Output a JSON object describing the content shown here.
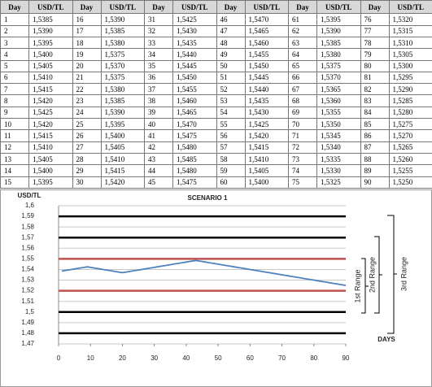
{
  "table": {
    "header": [
      "Day",
      "USD/TL",
      "Day",
      "USD/TL",
      "Day",
      "USD/TL",
      "Day",
      "USD/TL",
      "Day",
      "USD/TL",
      "Day",
      "USD/TL"
    ],
    "rows": [
      [
        "1",
        "1,5385",
        "16",
        "1,5390",
        "31",
        "1,5425",
        "46",
        "1,5470",
        "61",
        "1,5395",
        "76",
        "1,5320"
      ],
      [
        "2",
        "1,5390",
        "17",
        "1,5385",
        "32",
        "1,5430",
        "47",
        "1,5465",
        "62",
        "1,5390",
        "77",
        "1,5315"
      ],
      [
        "3",
        "1,5395",
        "18",
        "1,5380",
        "33",
        "1,5435",
        "48",
        "1,5460",
        "63",
        "1,5385",
        "78",
        "1,5310"
      ],
      [
        "4",
        "1,5400",
        "19",
        "1,5375",
        "34",
        "1,5440",
        "49",
        "1,5455",
        "64",
        "1,5380",
        "79",
        "1,5305"
      ],
      [
        "5",
        "1,5405",
        "20",
        "1,5370",
        "35",
        "1,5445",
        "50",
        "1,5450",
        "65",
        "1,5375",
        "80",
        "1,5300"
      ],
      [
        "6",
        "1,5410",
        "21",
        "1,5375",
        "36",
        "1,5450",
        "51",
        "1,5445",
        "66",
        "1,5370",
        "81",
        "1,5295"
      ],
      [
        "7",
        "1,5415",
        "22",
        "1,5380",
        "37",
        "1,5455",
        "52",
        "1,5440",
        "67",
        "1,5365",
        "82",
        "1,5290"
      ],
      [
        "8",
        "1,5420",
        "23",
        "1,5385",
        "38",
        "1,5460",
        "53",
        "1,5435",
        "68",
        "1,5360",
        "83",
        "1,5285"
      ],
      [
        "9",
        "1,5425",
        "24",
        "1,5390",
        "39",
        "1,5465",
        "54",
        "1,5430",
        "69",
        "1,5355",
        "84",
        "1,5280"
      ],
      [
        "10",
        "1,5420",
        "25",
        "1,5395",
        "40",
        "1,5470",
        "55",
        "1,5425",
        "70",
        "1,5350",
        "85",
        "1,5275"
      ],
      [
        "11",
        "1,5415",
        "26",
        "1,5400",
        "41",
        "1,5475",
        "56",
        "1,5420",
        "71",
        "1,5345",
        "86",
        "1,5270"
      ],
      [
        "12",
        "1,5410",
        "27",
        "1,5405",
        "42",
        "1,5480",
        "57",
        "1,5415",
        "72",
        "1,5340",
        "87",
        "1,5265"
      ],
      [
        "13",
        "1,5405",
        "28",
        "1,5410",
        "43",
        "1,5485",
        "58",
        "1,5410",
        "73",
        "1,5335",
        "88",
        "1,5260"
      ],
      [
        "14",
        "1,5400",
        "29",
        "1,5415",
        "44",
        "1,5480",
        "59",
        "1,5405",
        "74",
        "1,5330",
        "89",
        "1,5255"
      ],
      [
        "15",
        "1,5395",
        "30",
        "1,5420",
        "45",
        "1,5475",
        "60",
        "1,5400",
        "75",
        "1,5325",
        "90",
        "1,5250"
      ]
    ]
  },
  "chart_data": {
    "type": "line",
    "title": "SCENARIO 1",
    "y_label": "USD/TL",
    "x_label": "DAYS",
    "color": "#4f81bd",
    "x": [
      1,
      2,
      3,
      4,
      5,
      6,
      7,
      8,
      9,
      10,
      11,
      12,
      13,
      14,
      15,
      16,
      17,
      18,
      19,
      20,
      21,
      22,
      23,
      24,
      25,
      26,
      27,
      28,
      29,
      30,
      31,
      32,
      33,
      34,
      35,
      36,
      37,
      38,
      39,
      40,
      41,
      42,
      43,
      44,
      45,
      46,
      47,
      48,
      49,
      50,
      51,
      52,
      53,
      54,
      55,
      56,
      57,
      58,
      59,
      60,
      61,
      62,
      63,
      64,
      65,
      66,
      67,
      68,
      69,
      70,
      71,
      72,
      73,
      74,
      75,
      76,
      77,
      78,
      79,
      80,
      81,
      82,
      83,
      84,
      85,
      86,
      87,
      88,
      89,
      90
    ],
    "values": [
      1.5385,
      1.539,
      1.5395,
      1.54,
      1.5405,
      1.541,
      1.5415,
      1.542,
      1.5425,
      1.542,
      1.5415,
      1.541,
      1.5405,
      1.54,
      1.5395,
      1.539,
      1.5385,
      1.538,
      1.5375,
      1.537,
      1.5375,
      1.538,
      1.5385,
      1.539,
      1.5395,
      1.54,
      1.5405,
      1.541,
      1.5415,
      1.542,
      1.5425,
      1.543,
      1.5435,
      1.544,
      1.5445,
      1.545,
      1.5455,
      1.546,
      1.5465,
      1.547,
      1.5475,
      1.548,
      1.5485,
      1.548,
      1.5475,
      1.547,
      1.5465,
      1.546,
      1.5455,
      1.545,
      1.5445,
      1.544,
      1.5435,
      1.543,
      1.5425,
      1.542,
      1.5415,
      1.541,
      1.5405,
      1.54,
      1.5395,
      1.539,
      1.5385,
      1.538,
      1.5375,
      1.537,
      1.5365,
      1.536,
      1.5355,
      1.535,
      1.5345,
      1.534,
      1.5335,
      1.533,
      1.5325,
      1.532,
      1.5315,
      1.531,
      1.5305,
      1.53,
      1.5295,
      1.529,
      1.5285,
      1.528,
      1.5275,
      1.527,
      1.5265,
      1.526,
      1.5255,
      1.525
    ],
    "xlim": [
      0,
      90
    ],
    "xticks": [
      0,
      10,
      20,
      30,
      40,
      50,
      60,
      70,
      80,
      90
    ],
    "ylim": [
      1.47,
      1.6
    ],
    "yticks": [
      {
        "value": 1.47,
        "label": "1,47"
      },
      {
        "value": 1.48,
        "label": "1,48"
      },
      {
        "value": 1.49,
        "label": "1,49"
      },
      {
        "value": 1.5,
        "label": "1,5"
      },
      {
        "value": 1.51,
        "label": "1,51"
      },
      {
        "value": 1.52,
        "label": "1,52"
      },
      {
        "value": 1.53,
        "label": "1,53"
      },
      {
        "value": 1.54,
        "label": "1,54"
      },
      {
        "value": 1.55,
        "label": "1,55"
      },
      {
        "value": 1.56,
        "label": "1,56"
      },
      {
        "value": 1.57,
        "label": "1,57"
      },
      {
        "value": 1.58,
        "label": "1,58"
      },
      {
        "value": 1.59,
        "label": "1,59"
      },
      {
        "value": 1.6,
        "label": "1,6"
      }
    ],
    "grid": true,
    "reference_lines": [
      {
        "value": 1.59,
        "color": "#000000"
      },
      {
        "value": 1.57,
        "color": "#000000"
      },
      {
        "value": 1.55,
        "color": "#c0504d"
      },
      {
        "value": 1.52,
        "color": "#c0504d"
      },
      {
        "value": 1.5,
        "color": "#000000"
      },
      {
        "value": 1.48,
        "color": "#000000"
      }
    ],
    "annotations": [
      {
        "text": "1st Range",
        "color": "#c0504d"
      },
      {
        "text": "2nd Range",
        "color": "#000000"
      },
      {
        "text": "3rd Range",
        "color": "#000000"
      }
    ]
  }
}
